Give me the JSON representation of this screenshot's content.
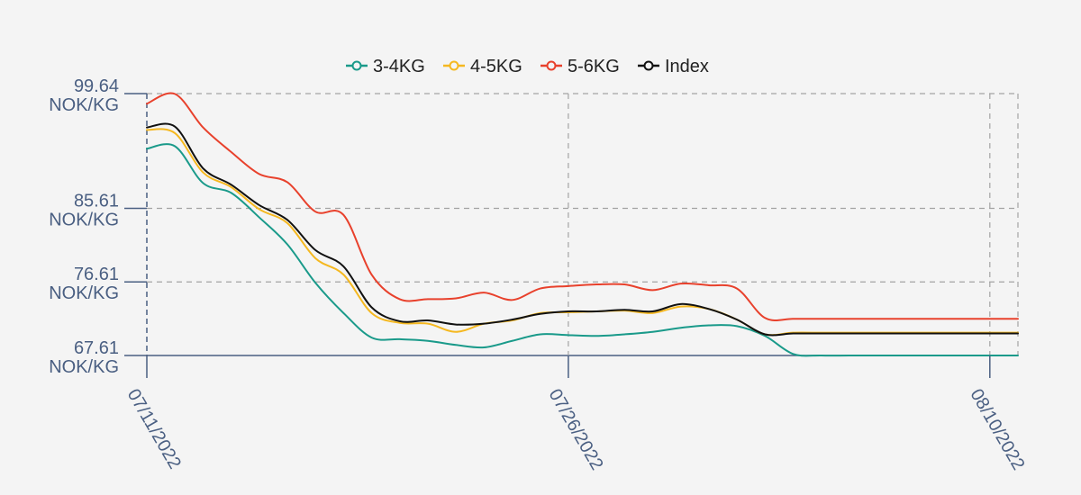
{
  "chart_data": {
    "type": "line",
    "title": "",
    "xlabel": "",
    "ylabel": "",
    "y_unit": "NOK/KG",
    "ylim": [
      67.61,
      99.64
    ],
    "y_ticks": [
      {
        "value": 99.64,
        "label": "99.64"
      },
      {
        "value": 85.61,
        "label": "85.61"
      },
      {
        "value": 76.61,
        "label": "76.61"
      },
      {
        "value": 67.61,
        "label": "67.61"
      }
    ],
    "x_ticks": [
      {
        "x": "2022-07-11",
        "label": "07/11/2022"
      },
      {
        "x": "2022-07-26",
        "label": "07/26/2022"
      },
      {
        "x": "2022-08-10",
        "label": "08/10/2022"
      }
    ],
    "xlim": [
      "2022-07-11",
      "2022-08-11"
    ],
    "grid": true,
    "legend_position": "top-center",
    "x": [
      "2022-07-11",
      "2022-07-12",
      "2022-07-13",
      "2022-07-14",
      "2022-07-15",
      "2022-07-16",
      "2022-07-17",
      "2022-07-18",
      "2022-07-19",
      "2022-07-20",
      "2022-07-21",
      "2022-07-22",
      "2022-07-23",
      "2022-07-24",
      "2022-07-25",
      "2022-07-26",
      "2022-07-27",
      "2022-07-28",
      "2022-07-29",
      "2022-07-30",
      "2022-07-31",
      "2022-08-01",
      "2022-08-02",
      "2022-08-03",
      "2022-08-04",
      "2022-08-05",
      "2022-08-06",
      "2022-08-07",
      "2022-08-08",
      "2022-08-09",
      "2022-08-10",
      "2022-08-11"
    ],
    "series": [
      {
        "name": "3-4KG",
        "color": "#1a9a8a",
        "values": [
          92.9,
          93.2,
          88.7,
          87.5,
          84.5,
          81.2,
          76.5,
          72.8,
          69.8,
          69.6,
          69.4,
          68.9,
          68.6,
          69.4,
          70.2,
          70.1,
          70.0,
          70.2,
          70.5,
          71.0,
          71.3,
          71.2,
          70.0,
          67.8,
          67.6,
          67.6,
          67.6,
          67.6,
          67.6,
          67.6,
          67.6,
          67.6
        ]
      },
      {
        "name": "4-5KG",
        "color": "#f5b820",
        "values": [
          95.2,
          94.8,
          90.0,
          88.2,
          85.5,
          83.8,
          79.5,
          77.5,
          72.8,
          71.6,
          71.5,
          70.5,
          71.5,
          71.9,
          72.8,
          72.9,
          73.0,
          73.1,
          72.8,
          73.6,
          73.3,
          72.0,
          70.2,
          70.4,
          70.4,
          70.4,
          70.4,
          70.4,
          70.4,
          70.4,
          70.4,
          70.4
        ]
      },
      {
        "name": "5-6KG",
        "color": "#e8412c",
        "values": [
          98.4,
          99.6,
          95.5,
          92.5,
          89.8,
          88.8,
          85.2,
          84.8,
          77.5,
          74.5,
          74.5,
          74.6,
          75.3,
          74.4,
          75.8,
          76.1,
          76.3,
          76.3,
          75.6,
          76.4,
          76.2,
          75.8,
          72.2,
          72.1,
          72.1,
          72.1,
          72.1,
          72.1,
          72.1,
          72.1,
          72.1,
          72.1
        ]
      },
      {
        "name": "Index",
        "color": "#111111",
        "values": [
          95.5,
          95.6,
          90.5,
          88.5,
          86.0,
          84.2,
          80.5,
          78.5,
          73.5,
          71.8,
          71.9,
          71.4,
          71.5,
          72.0,
          72.7,
          73.0,
          73.0,
          73.2,
          73.0,
          73.9,
          73.3,
          72.0,
          70.2,
          70.3,
          70.3,
          70.3,
          70.3,
          70.3,
          70.3,
          70.3,
          70.3,
          70.3
        ]
      }
    ]
  }
}
